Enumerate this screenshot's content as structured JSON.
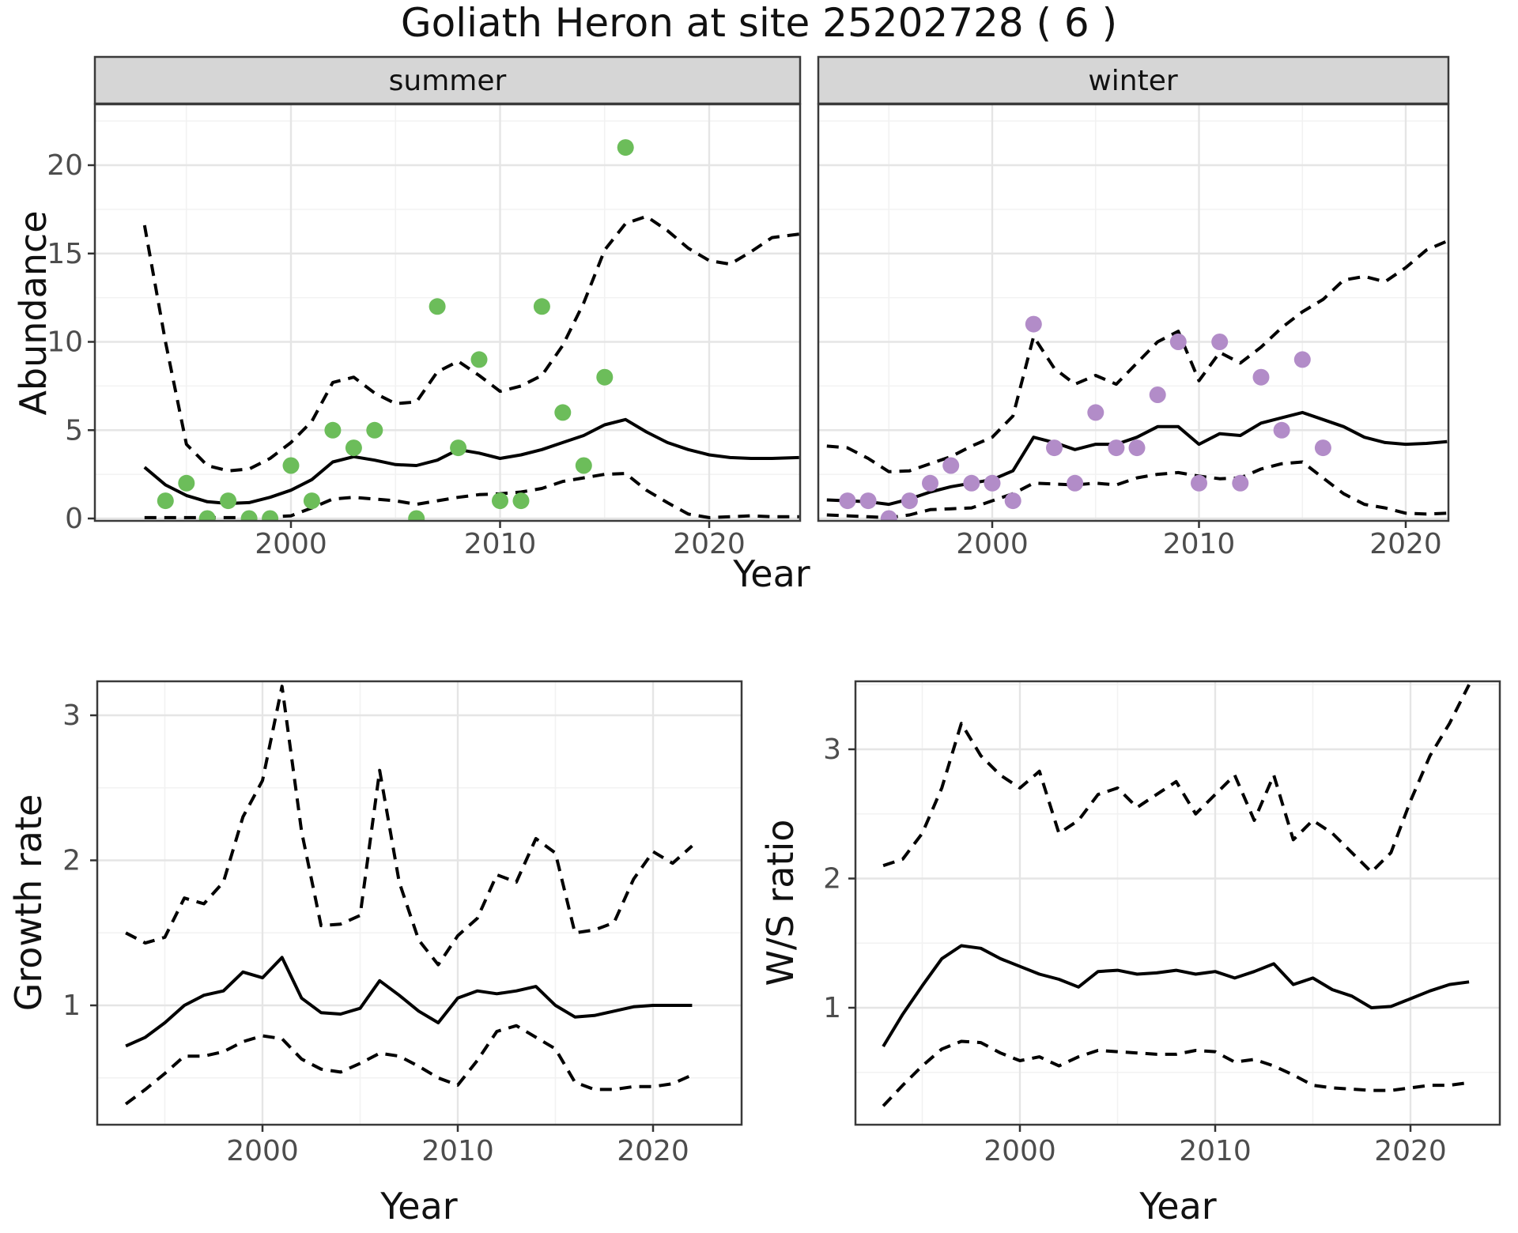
{
  "title": "Goliath Heron at site 25202728 ( 6 )",
  "axes": {
    "abundance_label": "Abundance",
    "year_label": "Year",
    "growth_label": "Growth rate",
    "ws_label": "W/S ratio"
  },
  "colors": {
    "summer_point": "#6cbd5a",
    "winter_point": "#b28cc8",
    "line": "#000000",
    "grid_major": "#e5e5e5",
    "grid_minor": "#f2f2f2",
    "strip_bg": "#d6d6d6",
    "panel_border": "#3a3a3a",
    "tick_text": "#4d4d4d"
  },
  "chart_data": [
    {
      "id": "summer",
      "type": "scatter",
      "facet_label": "summer",
      "xlabel": "Year",
      "ylabel": "Abundance",
      "x_major_ticks": [
        2000,
        2010,
        2020
      ],
      "x_minor_ticks": [
        1995,
        2005,
        2015
      ],
      "y_major_ticks": [
        0,
        5,
        10,
        15,
        20
      ],
      "y_minor_ticks": [
        2.5,
        7.5,
        12.5,
        17.5,
        22.5
      ],
      "xlim": [
        1990.6,
        2024.4
      ],
      "ylim": [
        -0.15,
        23.5
      ],
      "points": {
        "years": [
          1994,
          1995,
          1996,
          1997,
          1998,
          1999,
          2000,
          2001,
          2002,
          2003,
          2004,
          2006,
          2007,
          2008,
          2009,
          2010,
          2011,
          2012,
          2013,
          2014,
          2015,
          2016
        ],
        "values": [
          1,
          2,
          0,
          1,
          0,
          0,
          3,
          1,
          5,
          4,
          5,
          0,
          12,
          4,
          9,
          1,
          1,
          12,
          6,
          3,
          8,
          21
        ]
      },
      "series": [
        {
          "name": "trend",
          "style": "solid",
          "years": [
            1993,
            1994,
            1995,
            1996,
            1997,
            1998,
            1999,
            2000,
            2001,
            2002,
            2003,
            2004,
            2005,
            2006,
            2007,
            2008,
            2009,
            2010,
            2011,
            2012,
            2013,
            2014,
            2015,
            2016,
            2017,
            2018,
            2019,
            2020,
            2021,
            2022,
            2023,
            2024.3
          ],
          "values": [
            2.9,
            1.9,
            1.3,
            0.95,
            0.85,
            0.9,
            1.2,
            1.6,
            2.2,
            3.2,
            3.5,
            3.3,
            3.05,
            3.0,
            3.3,
            3.9,
            3.7,
            3.4,
            3.6,
            3.9,
            4.3,
            4.7,
            5.3,
            5.6,
            4.9,
            4.3,
            3.9,
            3.6,
            3.45,
            3.4,
            3.4,
            3.45
          ]
        },
        {
          "name": "upper_ci",
          "style": "dashed",
          "years": [
            1993,
            1994,
            1995,
            1996,
            1997,
            1998,
            1999,
            2000,
            2001,
            2002,
            2003,
            2004,
            2005,
            2006,
            2007,
            2008,
            2009,
            2010,
            2011,
            2012,
            2013,
            2014,
            2015,
            2016,
            2017,
            2018,
            2019,
            2020,
            2021,
            2022,
            2023,
            2024.3
          ],
          "values": [
            16.6,
            10.0,
            4.2,
            3.0,
            2.7,
            2.8,
            3.4,
            4.3,
            5.5,
            7.7,
            8.0,
            7.1,
            6.5,
            6.6,
            8.3,
            8.9,
            8.1,
            7.2,
            7.5,
            8.1,
            9.8,
            12.2,
            15.2,
            16.7,
            17.1,
            16.3,
            15.3,
            14.6,
            14.4,
            15.1,
            15.9,
            16.1
          ]
        },
        {
          "name": "lower_ci",
          "style": "dashed",
          "years": [
            1993,
            1994,
            1995,
            1996,
            1997,
            1998,
            1999,
            2000,
            2001,
            2002,
            2003,
            2004,
            2005,
            2006,
            2007,
            2008,
            2009,
            2010,
            2011,
            2012,
            2013,
            2014,
            2015,
            2016,
            2017,
            2018,
            2019,
            2020,
            2021,
            2022,
            2023,
            2024.3
          ],
          "values": [
            0.05,
            0.05,
            0.05,
            0.05,
            0.05,
            0.05,
            0.1,
            0.15,
            0.6,
            1.1,
            1.2,
            1.1,
            1.0,
            0.8,
            1.0,
            1.2,
            1.35,
            1.4,
            1.5,
            1.7,
            2.1,
            2.3,
            2.5,
            2.55,
            1.6,
            0.9,
            0.25,
            0.05,
            0.1,
            0.15,
            0.1,
            0.1
          ]
        }
      ]
    },
    {
      "id": "winter",
      "type": "scatter",
      "facet_label": "winter",
      "xlabel": "Year",
      "ylabel": "Abundance",
      "x_major_ticks": [
        2000,
        2010,
        2020
      ],
      "x_minor_ticks": [
        1995,
        2005,
        2015
      ],
      "y_major_ticks": [
        0,
        5,
        10,
        15,
        20
      ],
      "y_minor_ticks": [
        2.5,
        7.5,
        12.5,
        17.5,
        22.5
      ],
      "xlim": [
        1991.6,
        2022.1
      ],
      "ylim": [
        -0.15,
        23.5
      ],
      "points": {
        "years": [
          1993,
          1994,
          1995,
          1996,
          1997,
          1998,
          1999,
          2000,
          2001,
          2002,
          2003,
          2004,
          2005,
          2006,
          2007,
          2008,
          2009,
          2010,
          2011,
          2012,
          2013,
          2014,
          2015,
          2016
        ],
        "values": [
          1,
          1,
          0,
          1,
          2,
          3,
          2,
          2,
          1,
          11,
          4,
          2,
          6,
          4,
          4,
          7,
          10,
          2,
          10,
          2,
          8,
          5,
          9,
          4
        ]
      },
      "series": [
        {
          "name": "trend",
          "style": "solid",
          "years": [
            1992,
            1993,
            1994,
            1995,
            1996,
            1997,
            1998,
            1999,
            2000,
            2001,
            2002,
            2003,
            2004,
            2005,
            2006,
            2007,
            2008,
            2009,
            2010,
            2011,
            2012,
            2013,
            2014,
            2015,
            2016,
            2017,
            2018,
            2019,
            2020,
            2021,
            2022
          ],
          "values": [
            1.05,
            1.0,
            0.95,
            0.8,
            1.1,
            1.5,
            1.8,
            2.0,
            2.2,
            2.7,
            4.6,
            4.3,
            3.9,
            4.2,
            4.2,
            4.6,
            5.2,
            5.2,
            4.2,
            4.8,
            4.7,
            5.4,
            5.7,
            6.0,
            5.6,
            5.2,
            4.6,
            4.3,
            4.2,
            4.25,
            4.35
          ]
        },
        {
          "name": "upper_ci",
          "style": "dashed",
          "years": [
            1992,
            1993,
            1994,
            1995,
            1996,
            1997,
            1998,
            1999,
            2000,
            2001,
            2002,
            2003,
            2004,
            2005,
            2006,
            2007,
            2008,
            2009,
            2010,
            2011,
            2012,
            2013,
            2014,
            2015,
            2016,
            2017,
            2018,
            2019,
            2020,
            2021,
            2022
          ],
          "values": [
            4.1,
            4.0,
            3.4,
            2.65,
            2.7,
            3.1,
            3.5,
            4.1,
            4.6,
            5.8,
            10.3,
            8.5,
            7.6,
            8.1,
            7.6,
            8.8,
            10.0,
            10.6,
            7.8,
            9.4,
            8.8,
            9.7,
            10.8,
            11.7,
            12.4,
            13.5,
            13.7,
            13.4,
            14.2,
            15.2,
            15.7
          ]
        },
        {
          "name": "lower_ci",
          "style": "dashed",
          "years": [
            1992,
            1993,
            1994,
            1995,
            1996,
            1997,
            1998,
            1999,
            2000,
            2001,
            2002,
            2003,
            2004,
            2005,
            2006,
            2007,
            2008,
            2009,
            2010,
            2011,
            2012,
            2013,
            2014,
            2015,
            2016,
            2017,
            2018,
            2019,
            2020,
            2021,
            2022
          ],
          "values": [
            0.2,
            0.15,
            0.1,
            0.05,
            0.2,
            0.5,
            0.55,
            0.6,
            1.0,
            1.4,
            2.0,
            1.95,
            1.9,
            2.0,
            1.9,
            2.3,
            2.5,
            2.6,
            2.4,
            2.25,
            2.3,
            2.8,
            3.1,
            3.2,
            2.3,
            1.4,
            0.8,
            0.6,
            0.3,
            0.25,
            0.3
          ]
        }
      ]
    },
    {
      "id": "growth",
      "type": "line",
      "xlabel": "Year",
      "ylabel": "Growth rate",
      "x_major_ticks": [
        2000,
        2010,
        2020
      ],
      "x_minor_ticks": [
        1995,
        2005,
        2015
      ],
      "y_major_ticks": [
        1,
        2,
        3
      ],
      "y_minor_ticks": [
        0.5,
        1.5,
        2.5
      ],
      "xlim": [
        1991.5,
        2024.5
      ],
      "ylim": [
        0.18,
        3.23
      ],
      "series": [
        {
          "name": "trend",
          "style": "solid",
          "years": [
            1993,
            1994,
            1995,
            1996,
            1997,
            1998,
            1999,
            2000,
            2001,
            2002,
            2003,
            2004,
            2005,
            2006,
            2007,
            2008,
            2009,
            2010,
            2011,
            2012,
            2013,
            2014,
            2015,
            2016,
            2017,
            2018,
            2019,
            2020,
            2021,
            2022
          ],
          "values": [
            0.72,
            0.78,
            0.88,
            1.0,
            1.07,
            1.1,
            1.23,
            1.19,
            1.33,
            1.05,
            0.95,
            0.94,
            0.98,
            1.17,
            1.07,
            0.96,
            0.88,
            1.05,
            1.1,
            1.08,
            1.1,
            1.13,
            1.0,
            0.92,
            0.93,
            0.96,
            0.99,
            1.0,
            1.0,
            1.0
          ]
        },
        {
          "name": "upper_ci",
          "style": "dashed",
          "years": [
            1993,
            1994,
            1995,
            1996,
            1997,
            1998,
            1999,
            2000,
            2001,
            2002,
            2003,
            2004,
            2005,
            2006,
            2007,
            2008,
            2009,
            2010,
            2011,
            2012,
            2013,
            2014,
            2015,
            2016,
            2017,
            2018,
            2019,
            2020,
            2021,
            2022
          ],
          "values": [
            1.5,
            1.43,
            1.47,
            1.74,
            1.7,
            1.85,
            2.3,
            2.55,
            3.2,
            2.2,
            1.55,
            1.56,
            1.62,
            2.62,
            1.85,
            1.45,
            1.28,
            1.48,
            1.6,
            1.9,
            1.85,
            2.15,
            2.05,
            1.5,
            1.52,
            1.57,
            1.87,
            2.06,
            1.98,
            2.1
          ]
        },
        {
          "name": "lower_ci",
          "style": "dashed",
          "years": [
            1993,
            1994,
            1995,
            1996,
            1997,
            1998,
            1999,
            2000,
            2001,
            2002,
            2003,
            2004,
            2005,
            2006,
            2007,
            2008,
            2009,
            2010,
            2011,
            2012,
            2013,
            2014,
            2015,
            2016,
            2017,
            2018,
            2019,
            2020,
            2021,
            2022
          ],
          "values": [
            0.32,
            0.42,
            0.53,
            0.65,
            0.65,
            0.68,
            0.75,
            0.79,
            0.77,
            0.63,
            0.56,
            0.54,
            0.6,
            0.67,
            0.65,
            0.58,
            0.5,
            0.45,
            0.62,
            0.82,
            0.86,
            0.78,
            0.7,
            0.47,
            0.42,
            0.42,
            0.44,
            0.44,
            0.46,
            0.52
          ]
        }
      ]
    },
    {
      "id": "ws",
      "type": "line",
      "xlabel": "Year",
      "ylabel": "W/S ratio",
      "x_major_ticks": [
        2000,
        2010,
        2020
      ],
      "x_minor_ticks": [
        1995,
        2005,
        2015
      ],
      "y_major_ticks": [
        1,
        2,
        3
      ],
      "y_minor_ticks": [
        0.5,
        1.5,
        2.5,
        3.5
      ],
      "xlim": [
        1991.6,
        2024.6
      ],
      "ylim": [
        0.09,
        3.52
      ],
      "series": [
        {
          "name": "trend",
          "style": "solid",
          "years": [
            1993,
            1994,
            1995,
            1996,
            1997,
            1998,
            1999,
            2000,
            2001,
            2002,
            2003,
            2004,
            2005,
            2006,
            2007,
            2008,
            2009,
            2010,
            2011,
            2012,
            2013,
            2014,
            2015,
            2016,
            2017,
            2018,
            2019,
            2020,
            2021,
            2022,
            2023
          ],
          "values": [
            0.7,
            0.95,
            1.17,
            1.38,
            1.48,
            1.46,
            1.38,
            1.32,
            1.26,
            1.22,
            1.16,
            1.28,
            1.29,
            1.26,
            1.27,
            1.29,
            1.26,
            1.28,
            1.23,
            1.28,
            1.34,
            1.18,
            1.23,
            1.14,
            1.09,
            1.0,
            1.01,
            1.07,
            1.13,
            1.18,
            1.2
          ]
        },
        {
          "name": "upper_ci",
          "style": "dashed",
          "years": [
            1993,
            1994,
            1995,
            1996,
            1997,
            1998,
            1999,
            2000,
            2001,
            2002,
            2003,
            2004,
            2005,
            2006,
            2007,
            2008,
            2009,
            2010,
            2011,
            2012,
            2013,
            2014,
            2015,
            2016,
            2017,
            2018,
            2019,
            2020,
            2021,
            2022,
            2023
          ],
          "values": [
            2.1,
            2.15,
            2.35,
            2.7,
            3.2,
            2.95,
            2.8,
            2.7,
            2.83,
            2.35,
            2.45,
            2.65,
            2.7,
            2.55,
            2.65,
            2.75,
            2.5,
            2.65,
            2.8,
            2.45,
            2.8,
            2.3,
            2.45,
            2.35,
            2.2,
            2.05,
            2.2,
            2.6,
            2.95,
            3.2,
            3.5
          ]
        },
        {
          "name": "lower_ci",
          "style": "dashed",
          "years": [
            1993,
            1994,
            1995,
            1996,
            1997,
            1998,
            1999,
            2000,
            2001,
            2002,
            2003,
            2004,
            2005,
            2006,
            2007,
            2008,
            2009,
            2010,
            2011,
            2012,
            2013,
            2014,
            2015,
            2016,
            2017,
            2018,
            2019,
            2020,
            2021,
            2022,
            2023
          ],
          "values": [
            0.24,
            0.4,
            0.55,
            0.68,
            0.74,
            0.73,
            0.65,
            0.59,
            0.62,
            0.55,
            0.62,
            0.67,
            0.66,
            0.65,
            0.64,
            0.64,
            0.67,
            0.66,
            0.58,
            0.6,
            0.55,
            0.48,
            0.4,
            0.38,
            0.37,
            0.36,
            0.36,
            0.38,
            0.4,
            0.4,
            0.42
          ]
        }
      ]
    }
  ]
}
